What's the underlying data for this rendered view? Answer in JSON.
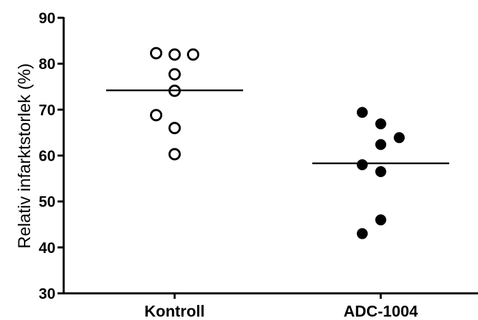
{
  "chart_data": {
    "type": "scatter",
    "title": "",
    "ylabel": "Relativ infarktstorlek (%)",
    "xlabel": "",
    "ylim": [
      30,
      90
    ],
    "yticks": [
      30,
      40,
      50,
      60,
      70,
      80,
      90
    ],
    "categories": [
      "Kontroll",
      "ADC-1004"
    ],
    "grid": false,
    "series": [
      {
        "category": "Kontroll",
        "marker": "open-circle",
        "color": "#000000",
        "points": [
          {
            "offset": -1,
            "value": 82.3
          },
          {
            "offset": 0,
            "value": 82.0
          },
          {
            "offset": 1,
            "value": 82.0
          },
          {
            "offset": 0,
            "value": 77.7
          },
          {
            "offset": 0,
            "value": 74.1
          },
          {
            "offset": -1,
            "value": 68.8
          },
          {
            "offset": 0,
            "value": 66.0
          },
          {
            "offset": 0,
            "value": 60.3
          }
        ],
        "median": 74.2
      },
      {
        "category": "ADC-1004",
        "marker": "filled-circle",
        "color": "#000000",
        "points": [
          {
            "offset": -1,
            "value": 69.4
          },
          {
            "offset": 0,
            "value": 66.9
          },
          {
            "offset": 0,
            "value": 62.4
          },
          {
            "offset": 1,
            "value": 63.9
          },
          {
            "offset": -1,
            "value": 58.0
          },
          {
            "offset": 0,
            "value": 56.5
          },
          {
            "offset": 0,
            "value": 46.0
          },
          {
            "offset": -1,
            "value": 43.0
          }
        ],
        "median": 58.3
      }
    ]
  }
}
